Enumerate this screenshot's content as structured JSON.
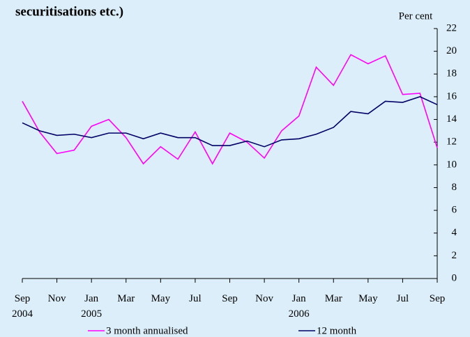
{
  "chart_data": {
    "type": "line",
    "title": "securitisations etc.)",
    "y_unit_label": "Per cent",
    "categories": [
      "Sep 2004",
      null,
      "Nov",
      null,
      "Jan 2005",
      null,
      "Mar",
      null,
      "May",
      null,
      "Jul",
      null,
      "Sep",
      null,
      "Nov",
      null,
      "Jan 2006",
      null,
      "Mar",
      null,
      "May",
      null,
      "Jul",
      null,
      "Sep"
    ],
    "series": [
      {
        "name": "3 month annualised",
        "color": "#ff00ff",
        "values": [
          15.6,
          12.9,
          11.0,
          11.3,
          13.4,
          14.0,
          12.4,
          10.1,
          11.6,
          10.5,
          12.9,
          10.1,
          12.8,
          12.0,
          10.6,
          13.0,
          14.3,
          18.6,
          17.0,
          19.7,
          18.9,
          19.6,
          16.2,
          16.3,
          11.5
        ]
      },
      {
        "name": "12 month",
        "color": "#000066",
        "values": [
          13.7,
          13.0,
          12.6,
          12.7,
          12.4,
          12.8,
          12.8,
          12.3,
          12.8,
          12.4,
          12.4,
          11.7,
          11.7,
          12.1,
          11.6,
          12.2,
          12.3,
          12.7,
          13.3,
          14.7,
          14.5,
          15.6,
          15.5,
          16.0,
          15.3
        ]
      }
    ],
    "ylim": [
      0,
      22
    ],
    "yticks": [
      0,
      2,
      4,
      6,
      8,
      10,
      12,
      14,
      16,
      18,
      20,
      22
    ],
    "y_axis_side": "right"
  }
}
